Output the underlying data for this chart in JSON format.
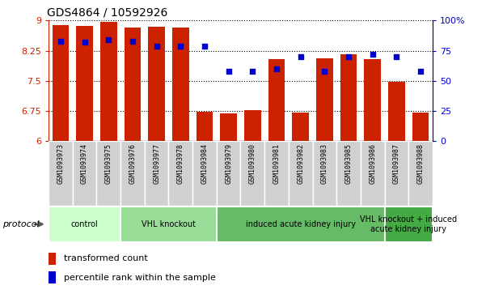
{
  "title": "GDS4864 / 10592926",
  "samples": [
    "GSM1093973",
    "GSM1093974",
    "GSM1093975",
    "GSM1093976",
    "GSM1093977",
    "GSM1093978",
    "GSM1093984",
    "GSM1093979",
    "GSM1093980",
    "GSM1093981",
    "GSM1093982",
    "GSM1093983",
    "GSM1093985",
    "GSM1093986",
    "GSM1093987",
    "GSM1093988"
  ],
  "bar_values": [
    8.88,
    8.87,
    8.97,
    8.83,
    8.84,
    8.83,
    6.73,
    6.69,
    6.78,
    8.04,
    6.71,
    8.06,
    8.17,
    8.05,
    7.48,
    6.71
  ],
  "dot_values": [
    83,
    82,
    84,
    83,
    79,
    79,
    79,
    58,
    58,
    60,
    70,
    58,
    70,
    72,
    70,
    58
  ],
  "bar_color": "#cc2200",
  "dot_color": "#0000cc",
  "ylim_left": [
    6,
    9
  ],
  "ylim_right": [
    0,
    100
  ],
  "yticks_left": [
    6,
    6.75,
    7.5,
    8.25,
    9
  ],
  "yticks_right": [
    0,
    25,
    50,
    75,
    100
  ],
  "ytick_labels_right": [
    "0",
    "25",
    "50",
    "75",
    "100%"
  ],
  "groups": [
    {
      "label": "control",
      "start": 0,
      "end": 2,
      "color": "#ccffcc"
    },
    {
      "label": "VHL knockout",
      "start": 3,
      "end": 6,
      "color": "#99dd99"
    },
    {
      "label": "induced acute kidney injury",
      "start": 7,
      "end": 13,
      "color": "#66bb66"
    },
    {
      "label": "VHL knockout + induced\nacute kidney injury",
      "start": 14,
      "end": 15,
      "color": "#44aa44"
    }
  ],
  "legend_bar_label": "transformed count",
  "legend_dot_label": "percentile rank within the sample",
  "protocol_label": "protocol",
  "bar_color_legend": "#cc2200",
  "dot_color_legend": "#0000cc",
  "xtick_bg": "#cccccc",
  "xtick_border": "#aaaaaa"
}
